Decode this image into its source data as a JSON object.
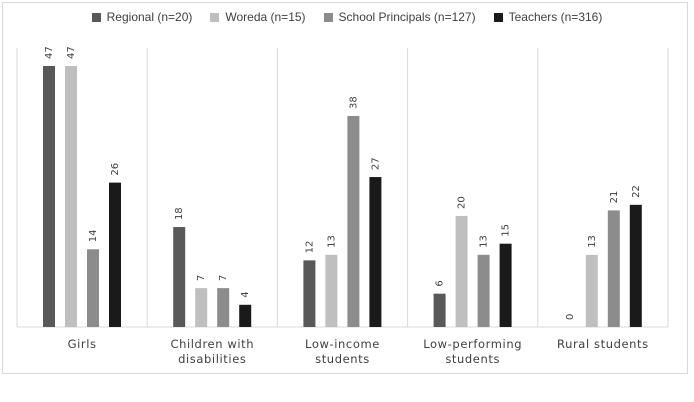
{
  "chart_data": {
    "type": "bar",
    "categories": [
      [
        "Girls"
      ],
      [
        "Children with",
        "disabilities"
      ],
      [
        "Low-income",
        "students"
      ],
      [
        "Low-performing",
        "students"
      ],
      [
        "Rural students"
      ]
    ],
    "series": [
      {
        "name": "Regional (n=20)",
        "color": "#595959",
        "values": [
          47,
          18,
          12,
          6,
          0
        ]
      },
      {
        "name": "Woreda (n=15)",
        "color": "#bfbfbf",
        "values": [
          47,
          7,
          13,
          20,
          13
        ]
      },
      {
        "name": "School Principals (n=127)",
        "color": "#8c8c8c",
        "values": [
          14,
          7,
          38,
          13,
          21
        ]
      },
      {
        "name": "Teachers (n=316)",
        "color": "#1a1a1a",
        "values": [
          26,
          4,
          27,
          15,
          22
        ]
      }
    ],
    "ylim": [
      0,
      47
    ],
    "grid": false,
    "legend_position": "top"
  }
}
